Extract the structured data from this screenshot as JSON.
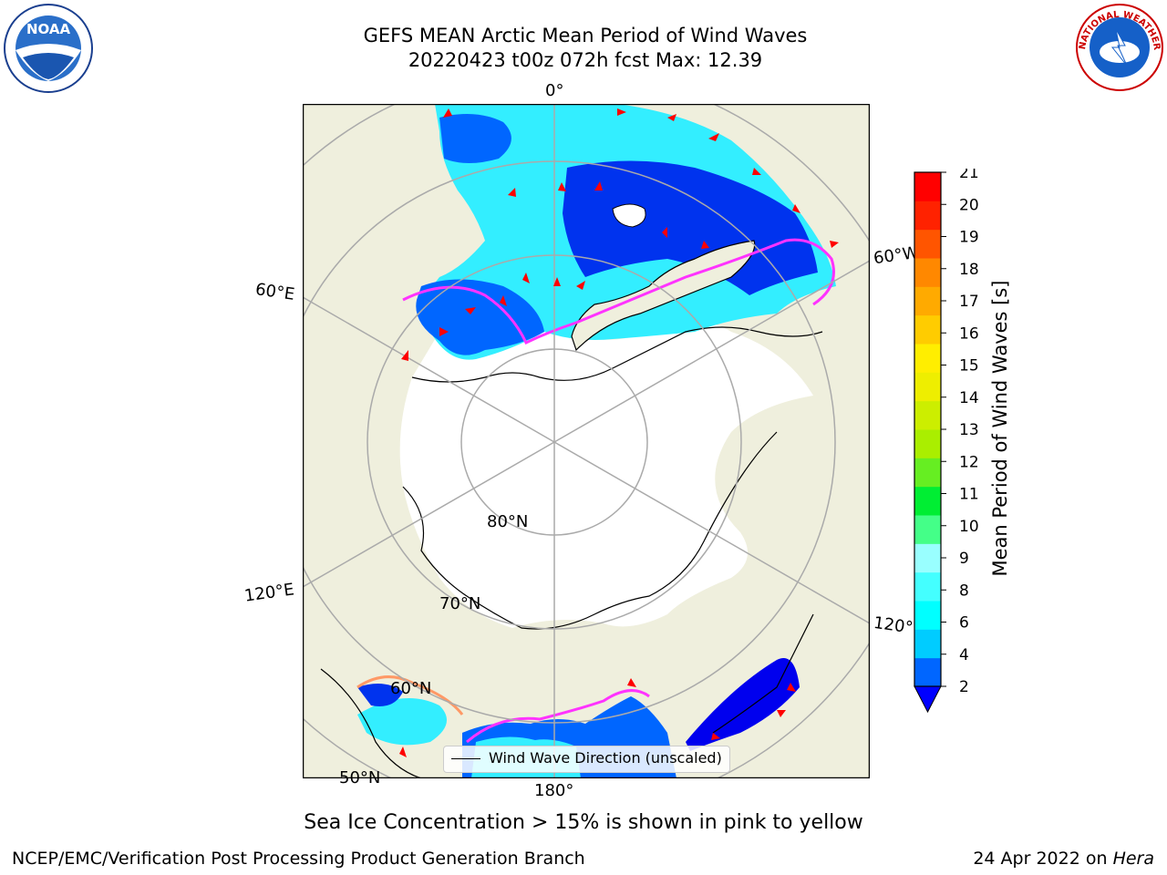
{
  "title": {
    "line1": "GEFS MEAN Arctic Mean Period of Wind Waves",
    "line2": "20220423 t00z 072h fcst   Max: 12.39"
  },
  "map": {
    "projection": "north-polar-stereographic",
    "lon_labels": [
      "0°",
      "60°E",
      "60°W",
      "120°E",
      "120°W",
      "180°"
    ],
    "lat_labels": [
      "80°N",
      "70°N",
      "60°N",
      "50°N"
    ],
    "land_color": "#efefdd",
    "ocean_no_data_color": "#ffffff",
    "grid_color": "#aaaaaa",
    "ice_edge_colors": [
      "#ff33ff",
      "#ff9966",
      "#ffcc44"
    ]
  },
  "legend": {
    "label": "Wind Wave Direction (unscaled)",
    "arrow_color": "#ff0000"
  },
  "colorbar": {
    "label": "Mean Period of Wind Waves [s]",
    "ticks": [
      "2",
      "4",
      "6",
      "8",
      "9",
      "10",
      "11",
      "12",
      "13",
      "14",
      "15",
      "16",
      "17",
      "18",
      "19",
      "20",
      "21"
    ],
    "bands": [
      "#0066ff",
      "#00ccff",
      "#00ffff",
      "#44ffff",
      "#99ffff",
      "#44ff88",
      "#00ee33",
      "#66ee22",
      "#aaee00",
      "#ccee00",
      "#eeee00",
      "#ffee00",
      "#ffcc00",
      "#ffaa00",
      "#ff8800",
      "#ff5500",
      "#ff2200",
      "#ff0000"
    ],
    "extend_min_color": "#0000ff"
  },
  "note": "Sea Ice Concentration > 15% is shown in pink to yellow",
  "footer": {
    "left": "NCEP/EMC/Verification Post Processing Product Generation Branch",
    "right_date": "24 Apr 2022 on",
    "right_host": "Hera"
  },
  "logos": {
    "noaa_text": "NOAA",
    "nws_text": "NATIONAL WEATHER SERVICE"
  }
}
